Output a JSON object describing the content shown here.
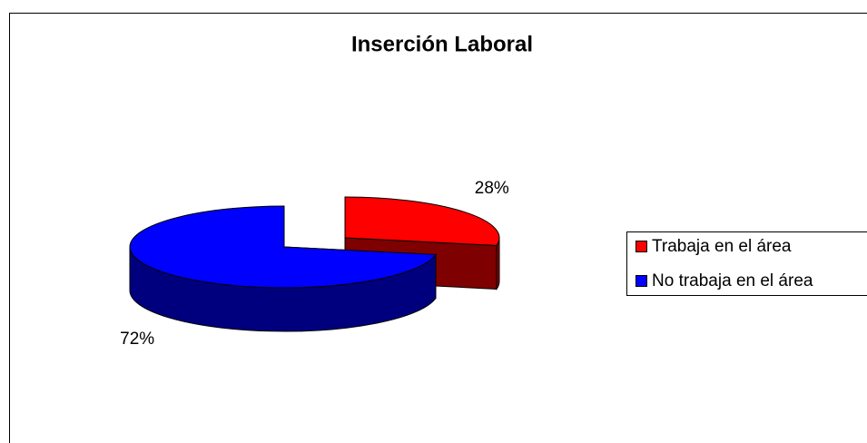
{
  "chart_data": {
    "type": "pie",
    "title": "Inserción Laboral",
    "categories": [
      "Trabaja en el área",
      "No trabaja en el área"
    ],
    "values": [
      28,
      72
    ],
    "value_labels": [
      "28%",
      "72%"
    ],
    "colors": [
      "#ff0000",
      "#0000ff"
    ],
    "legend": "right"
  }
}
